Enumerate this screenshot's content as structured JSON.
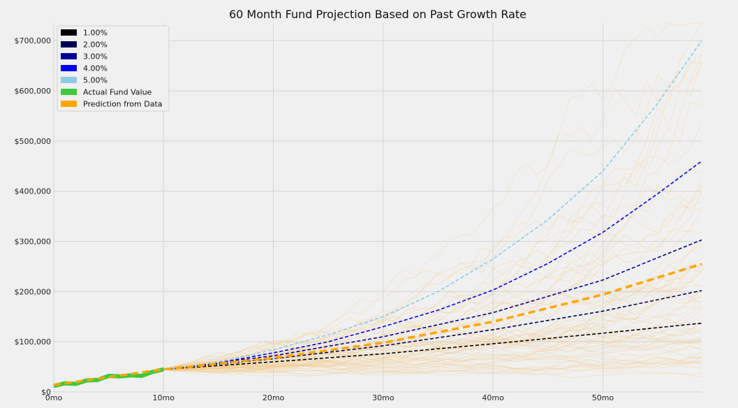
{
  "chart_data": {
    "type": "line",
    "title": "60 Month Fund Projection Based on Past Growth Rate",
    "xlabel": "",
    "ylabel": "",
    "xlim": [
      0,
      59
    ],
    "ylim": [
      0,
      735000
    ],
    "grid": true,
    "legend_placement": "top-left",
    "x_ticks": [
      {
        "value": 0,
        "label": "0mo"
      },
      {
        "value": 10,
        "label": "10mo"
      },
      {
        "value": 20,
        "label": "20mo"
      },
      {
        "value": 30,
        "label": "30mo"
      },
      {
        "value": 40,
        "label": "40mo"
      },
      {
        "value": 50,
        "label": "50mo"
      }
    ],
    "y_ticks": [
      {
        "value": 0,
        "label": "$0"
      },
      {
        "value": 100000,
        "label": "$100,000"
      },
      {
        "value": 200000,
        "label": "$200,000"
      },
      {
        "value": 300000,
        "label": "$300,000"
      },
      {
        "value": 400000,
        "label": "$400,000"
      },
      {
        "value": 500000,
        "label": "$500,000"
      },
      {
        "value": 600000,
        "label": "$600,000"
      },
      {
        "value": 700000,
        "label": "$700,000"
      }
    ],
    "series": [
      {
        "name": "1.00%",
        "color": "#000000",
        "style": "dashed",
        "x": [
          10,
          20,
          30,
          40,
          50,
          59
        ],
        "y": [
          45000,
          60000,
          76000,
          96000,
          117000,
          137000
        ]
      },
      {
        "name": "2.00%",
        "color": "#000055",
        "style": "dashed",
        "x": [
          10,
          20,
          30,
          40,
          50,
          59
        ],
        "y": [
          45000,
          66000,
          92000,
          124000,
          161000,
          202000
        ]
      },
      {
        "name": "3.00%",
        "color": "#000099",
        "style": "dashed",
        "x": [
          10,
          20,
          30,
          40,
          50,
          59
        ],
        "y": [
          45000,
          72000,
          110000,
          158000,
          223000,
          303000
        ]
      },
      {
        "name": "4.00%",
        "color": "#0000ee",
        "style": "dashed",
        "x": [
          10,
          15,
          20,
          25,
          30,
          35,
          40,
          45,
          50,
          55,
          59
        ],
        "y": [
          45000,
          58000,
          78000,
          100000,
          130000,
          163000,
          203000,
          256000,
          318000,
          395000,
          460000
        ]
      },
      {
        "name": "5.00%",
        "color": "#8ecae6",
        "style": "dashed",
        "x": [
          10,
          15,
          20,
          25,
          30,
          35,
          40,
          45,
          50,
          55,
          59
        ],
        "y": [
          45000,
          60000,
          84000,
          114000,
          150000,
          200000,
          265000,
          343000,
          440000,
          575000,
          700000
        ]
      },
      {
        "name": "Actual Fund Value",
        "color": "#3ec93e",
        "style": "thick",
        "x": [
          0,
          1,
          2,
          3,
          4,
          5,
          6,
          7,
          8,
          9,
          10
        ],
        "y": [
          12000,
          17000,
          16000,
          23000,
          24000,
          32000,
          31000,
          33000,
          32000,
          40000,
          45000
        ]
      },
      {
        "name": "Prediction from Data",
        "color": "#ffa500",
        "style": "dashed-thick",
        "x": [
          0,
          10,
          20,
          30,
          40,
          50,
          59
        ],
        "y": [
          14000,
          45000,
          68000,
          98000,
          140000,
          194000,
          255000
        ]
      }
    ]
  }
}
